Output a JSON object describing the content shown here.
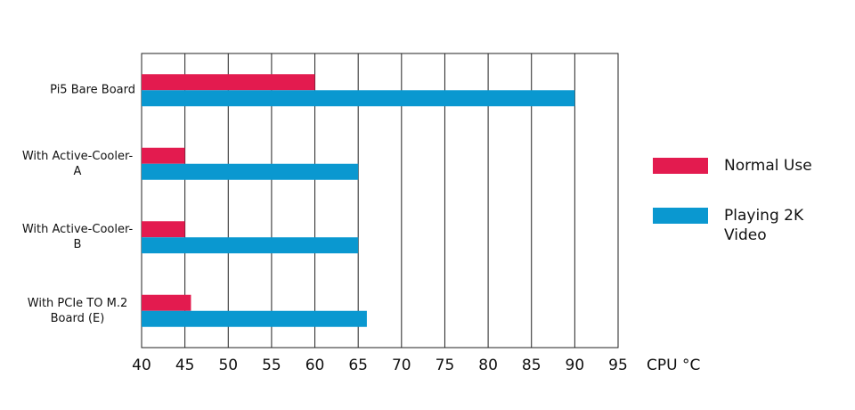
{
  "chart_data": {
    "type": "barh",
    "categories": [
      "Pi5 Bare Board",
      "With Active-Cooler-A",
      "With Active-Cooler-B",
      "With PCIe TO M.2 Board (E)"
    ],
    "series": [
      {
        "name": "Normal Use",
        "color": "#e31b4f",
        "values": [
          60,
          45,
          45,
          45.7
        ]
      },
      {
        "name": "Playing 2K Video",
        "color": "#0a98d0",
        "values": [
          90,
          65,
          65,
          66
        ]
      }
    ],
    "xlabel": "CPU °C",
    "xlim": [
      40,
      95
    ],
    "xticks": [
      40,
      45,
      50,
      55,
      60,
      65,
      70,
      75,
      80,
      85,
      90,
      95
    ],
    "grid": true,
    "legend": "right"
  }
}
